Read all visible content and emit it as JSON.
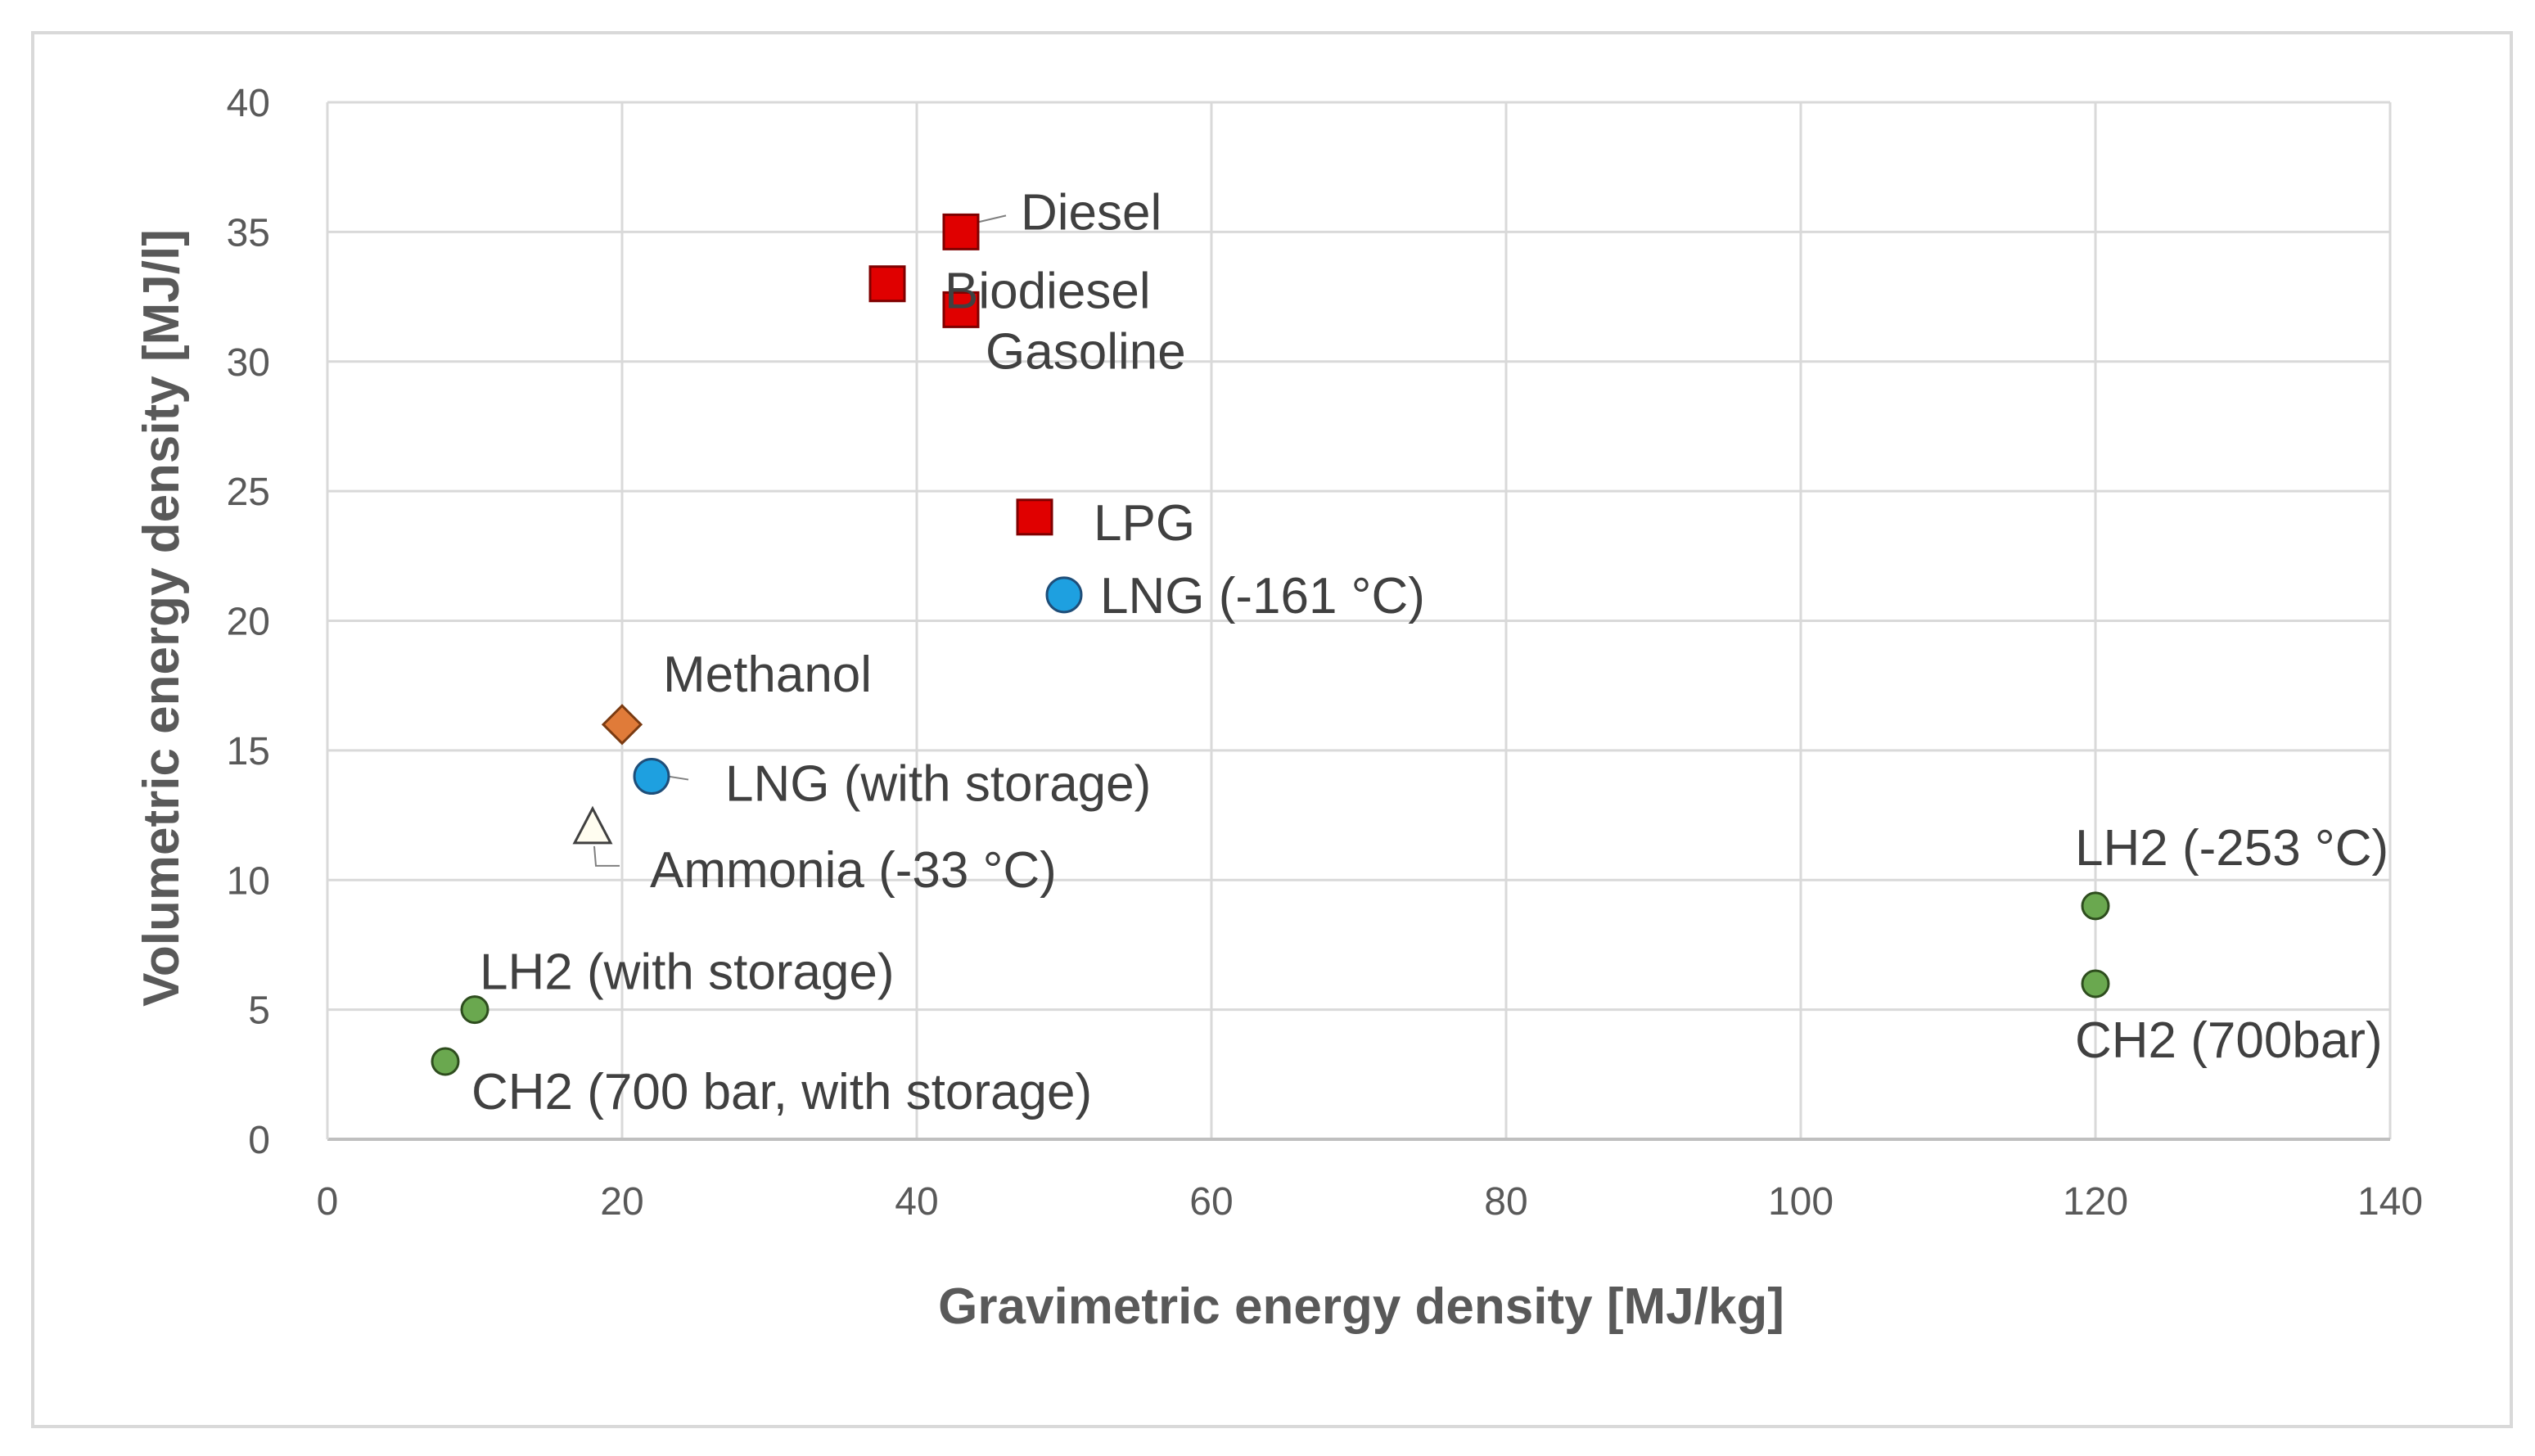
{
  "chart_data": {
    "type": "scatter",
    "title": "",
    "xlabel": "Gravimetric energy density [MJ/kg]",
    "ylabel": "Volumetric energy density [MJ/l]",
    "xlim": [
      0,
      140
    ],
    "ylim": [
      0,
      40
    ],
    "x_ticks": [
      0,
      20,
      40,
      60,
      80,
      100,
      120,
      140
    ],
    "y_ticks": [
      0,
      5,
      10,
      15,
      20,
      25,
      30,
      35,
      40
    ],
    "grid": true,
    "legend": "none",
    "points": [
      {
        "id": "diesel",
        "label": "Diesel",
        "x": 43,
        "y": 35,
        "marker": "square",
        "color": "#e00000"
      },
      {
        "id": "biodiesel",
        "label": "Biodiesel",
        "x": 38,
        "y": 33,
        "marker": "square",
        "color": "#e00000"
      },
      {
        "id": "gasoline",
        "label": "Gasoline",
        "x": 43,
        "y": 32,
        "marker": "square",
        "color": "#e00000"
      },
      {
        "id": "lpg",
        "label": "LPG",
        "x": 48,
        "y": 24,
        "marker": "square",
        "color": "#e00000"
      },
      {
        "id": "lng-161",
        "label": "LNG (-161 °C)",
        "x": 50,
        "y": 21,
        "marker": "circle",
        "color": "#1ea0e0"
      },
      {
        "id": "methanol",
        "label": "Methanol",
        "x": 20,
        "y": 16,
        "marker": "diamond",
        "color": "#e07b39"
      },
      {
        "id": "lng-storage",
        "label": "LNG (with storage)",
        "x": 22,
        "y": 14,
        "marker": "circle",
        "color": "#1ea0e0"
      },
      {
        "id": "ammonia",
        "label": "Ammonia (-33 °C)",
        "x": 18,
        "y": 12,
        "marker": "triangle",
        "color": "#fffdf0"
      },
      {
        "id": "lh2-253",
        "label": "LH2 (-253 °C)",
        "x": 120,
        "y": 9,
        "marker": "small-circle",
        "color": "#6aa84f"
      },
      {
        "id": "ch2-700",
        "label": "CH2 (700bar)",
        "x": 120,
        "y": 6,
        "marker": "small-circle",
        "color": "#6aa84f"
      },
      {
        "id": "lh2-storage",
        "label": "LH2 (with storage)",
        "x": 10,
        "y": 5,
        "marker": "small-circle",
        "color": "#6aa84f"
      },
      {
        "id": "ch2-storage",
        "label": "CH2 (700 bar, with storage)",
        "x": 8,
        "y": 3,
        "marker": "small-circle",
        "color": "#6aa84f"
      }
    ]
  }
}
